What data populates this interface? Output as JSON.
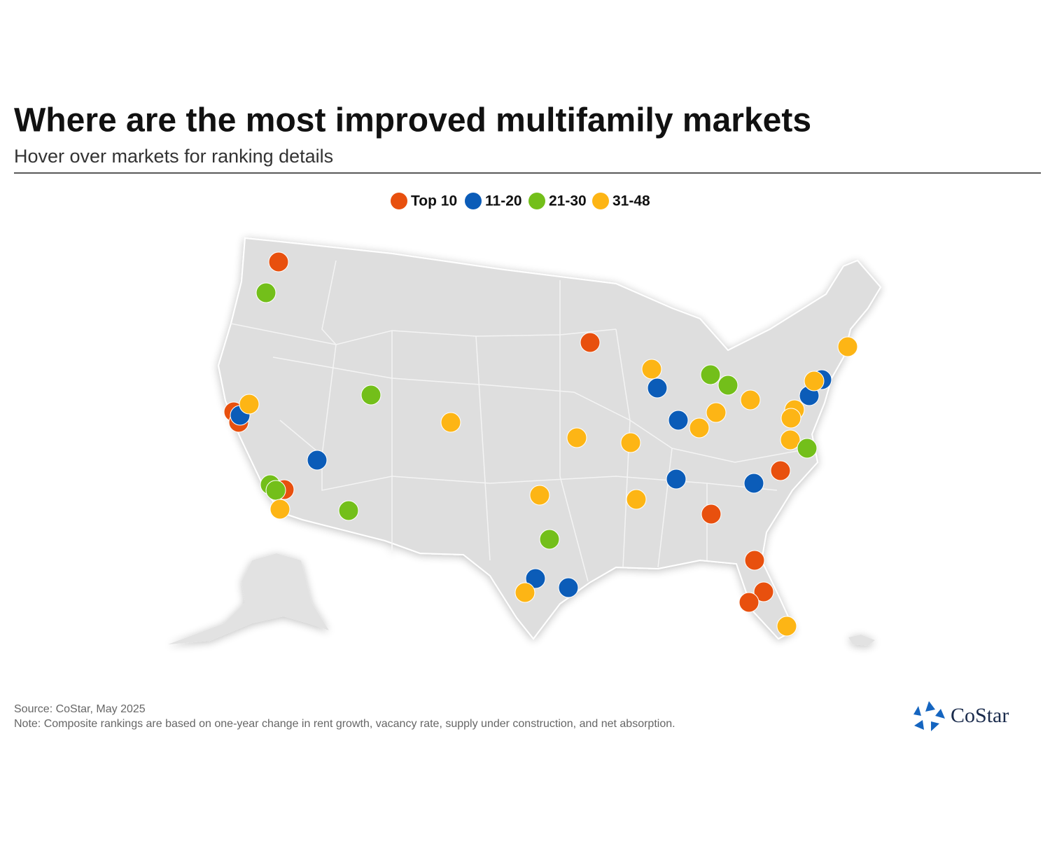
{
  "header": {
    "title": "Where are the most improved multifamily markets",
    "subtitle": "Hover over markets for ranking details"
  },
  "legend": {
    "items": [
      {
        "label": "Top 10",
        "color": "#e8500e"
      },
      {
        "label": "11-20",
        "color": "#0b5cb8"
      },
      {
        "label": "21-30",
        "color": "#73bf1a"
      },
      {
        "label": "31-48",
        "color": "#fdb515"
      }
    ]
  },
  "footer": {
    "source": "Source: CoStar, May 2025",
    "note": "Note: Composite rankings are based on one-year change in rent growth, vacancy rate, supply under construction, and net absorption."
  },
  "logo": {
    "text": "CoStar"
  }
}
